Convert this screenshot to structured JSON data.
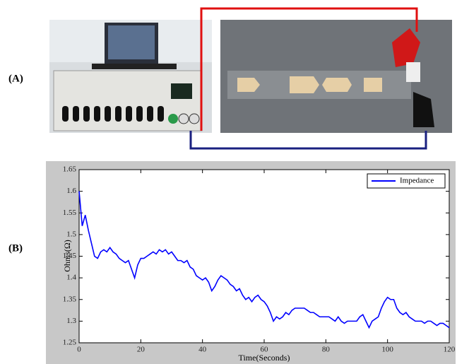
{
  "figure": {
    "panel_a_label": "(A)",
    "panel_b_label": "(B)"
  },
  "chart_data": {
    "type": "line",
    "x_label": "Time(Seconds)",
    "y_label": "Ohms(Ω)",
    "x": [
      0,
      1,
      2,
      3,
      4,
      5,
      6,
      7,
      8,
      9,
      10,
      11,
      12,
      13,
      14,
      15,
      16,
      17,
      18,
      19,
      20,
      21,
      22,
      23,
      24,
      25,
      26,
      27,
      28,
      29,
      30,
      31,
      32,
      33,
      34,
      35,
      36,
      37,
      38,
      39,
      40,
      41,
      42,
      43,
      44,
      45,
      46,
      47,
      48,
      49,
      50,
      51,
      52,
      53,
      54,
      55,
      56,
      57,
      58,
      59,
      60,
      61,
      62,
      63,
      64,
      65,
      66,
      67,
      68,
      69,
      70,
      71,
      72,
      73,
      74,
      75,
      76,
      77,
      78,
      79,
      80,
      81,
      82,
      83,
      84,
      85,
      86,
      87,
      88,
      89,
      90,
      91,
      92,
      93,
      94,
      95,
      96,
      97,
      98,
      99,
      100,
      101,
      102,
      103,
      104,
      105,
      106,
      107,
      108,
      109,
      110,
      111,
      112,
      113,
      114,
      115,
      116,
      117,
      118,
      119,
      120
    ],
    "series": [
      {
        "name": "Impedance",
        "color": "#0000ff",
        "values": [
          1.6,
          1.52,
          1.545,
          1.51,
          1.48,
          1.45,
          1.445,
          1.46,
          1.465,
          1.46,
          1.47,
          1.46,
          1.455,
          1.445,
          1.44,
          1.435,
          1.44,
          1.42,
          1.4,
          1.43,
          1.445,
          1.445,
          1.45,
          1.455,
          1.46,
          1.455,
          1.465,
          1.46,
          1.465,
          1.455,
          1.46,
          1.45,
          1.44,
          1.44,
          1.435,
          1.44,
          1.425,
          1.42,
          1.405,
          1.4,
          1.395,
          1.4,
          1.39,
          1.37,
          1.38,
          1.395,
          1.405,
          1.4,
          1.395,
          1.385,
          1.38,
          1.37,
          1.375,
          1.36,
          1.35,
          1.355,
          1.345,
          1.355,
          1.36,
          1.35,
          1.345,
          1.335,
          1.32,
          1.3,
          1.31,
          1.305,
          1.31,
          1.32,
          1.315,
          1.325,
          1.33,
          1.33,
          1.33,
          1.33,
          1.325,
          1.32,
          1.32,
          1.315,
          1.31,
          1.31,
          1.31,
          1.31,
          1.305,
          1.3,
          1.31,
          1.3,
          1.295,
          1.3,
          1.3,
          1.3,
          1.3,
          1.31,
          1.315,
          1.3,
          1.285,
          1.3,
          1.305,
          1.31,
          1.33,
          1.345,
          1.355,
          1.35,
          1.35,
          1.33,
          1.32,
          1.315,
          1.32,
          1.31,
          1.305,
          1.3,
          1.3,
          1.3,
          1.295,
          1.3,
          1.3,
          1.295,
          1.29,
          1.295,
          1.295,
          1.29,
          1.285
        ]
      }
    ],
    "xlim": [
      0,
      120
    ],
    "xticks": [
      0,
      20,
      40,
      60,
      80,
      100,
      120
    ],
    "ylim": [
      1.25,
      1.65
    ],
    "yticks": [
      1.25,
      1.3,
      1.35,
      1.4,
      1.45,
      1.5,
      1.55,
      1.6,
      1.65
    ],
    "legend": "upper right"
  }
}
